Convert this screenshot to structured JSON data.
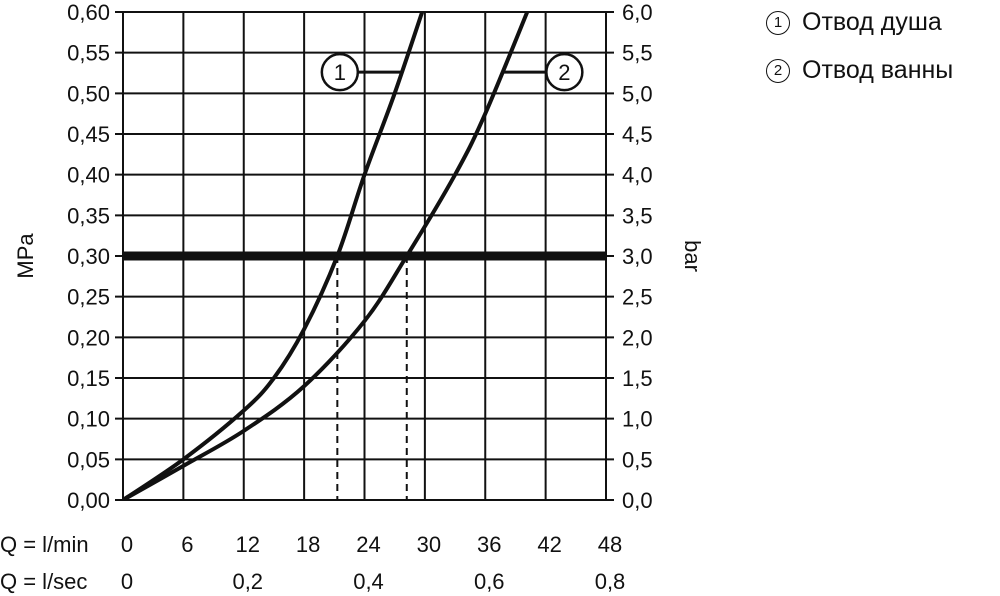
{
  "chart_data": {
    "type": "line",
    "x_unit_label": "Q = l/min",
    "x_ticks": [
      0,
      6,
      12,
      18,
      24,
      30,
      36,
      42,
      48
    ],
    "x2_unit_label": "Q = l/sec",
    "x2_ticks": [
      "0",
      "0,2",
      "0,4",
      "0,6",
      "0,8"
    ],
    "y_left_label": "MPa",
    "y_left_ticks": [
      "0,00",
      "0,05",
      "0,10",
      "0,15",
      "0,20",
      "0,25",
      "0,30",
      "0,35",
      "0,40",
      "0,45",
      "0,50",
      "0,55",
      "0,60"
    ],
    "y_right_label": "bar",
    "y_right_ticks": [
      "0,0",
      "0,5",
      "1,0",
      "1,5",
      "2,0",
      "2,5",
      "3,0",
      "3,5",
      "4,0",
      "4,5",
      "5,0",
      "5,5",
      "6,0"
    ],
    "xlim": [
      0,
      48
    ],
    "ylim": [
      0,
      0.6
    ],
    "grid": true,
    "reference_line": {
      "y": 0.3
    },
    "series": [
      {
        "name": "1",
        "label": "Отвод душа",
        "x": [
          0,
          6,
          12,
          15,
          18,
          21.3,
          24,
          27,
          30
        ],
        "y": [
          0,
          0.05,
          0.11,
          0.15,
          0.21,
          0.3,
          0.4,
          0.5,
          0.61
        ],
        "intersect_x": 21.3
      },
      {
        "name": "2",
        "label": "Отвод ванны",
        "x": [
          0,
          6,
          12,
          18,
          24,
          28.2,
          33,
          36,
          40.5
        ],
        "y": [
          0,
          0.042,
          0.085,
          0.14,
          0.22,
          0.3,
          0.4,
          0.475,
          0.61
        ],
        "intersect_x": 28.2
      }
    ],
    "callouts": [
      {
        "series": "1",
        "text": "1"
      },
      {
        "series": "2",
        "text": "2"
      }
    ]
  },
  "legend": [
    {
      "num": "1",
      "text": "Отвод душа"
    },
    {
      "num": "2",
      "text": "Отвод ванны"
    }
  ]
}
